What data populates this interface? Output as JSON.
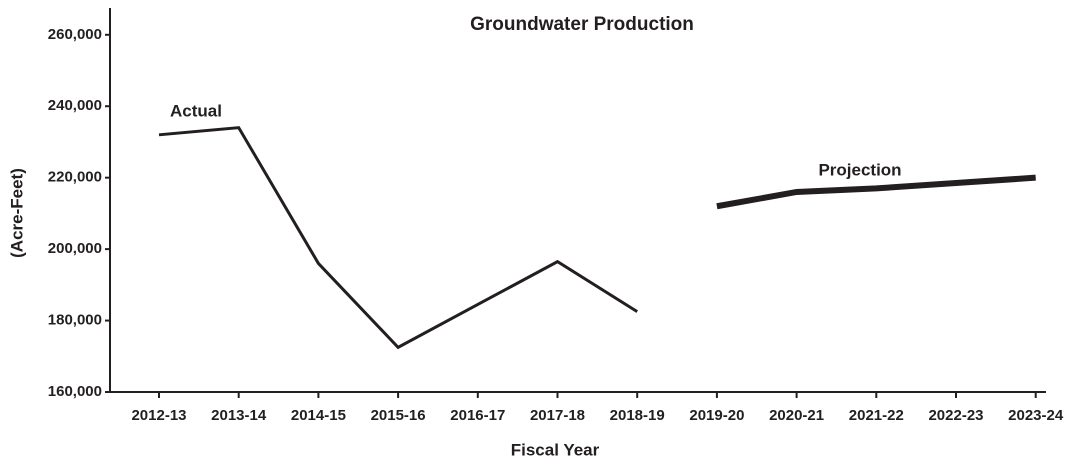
{
  "chart_data": {
    "type": "line",
    "title": "Groundwater Production",
    "x_label": "Fiscal Year",
    "y_label": "(Acre-Feet)",
    "categories": [
      "2012-13",
      "2013-14",
      "2014-15",
      "2015-16",
      "2016-17",
      "2017-18",
      "2018-19",
      "2019-20",
      "2020-21",
      "2021-22",
      "2022-23",
      "2023-24"
    ],
    "series": [
      {
        "name": "Actual",
        "color": "#231f20",
        "line_width": 3,
        "values": [
          232000,
          234000,
          196000,
          172500,
          184500,
          196500,
          182500,
          null,
          null,
          null,
          null,
          null
        ]
      },
      {
        "name": "Projection",
        "color": "#231f20",
        "line_width": 6,
        "values": [
          null,
          null,
          null,
          null,
          null,
          null,
          null,
          212000,
          216000,
          217000,
          218500,
          220000
        ]
      }
    ],
    "ylim": [
      160000,
      267500
    ],
    "yticks": [
      {
        "value": 160000,
        "label": "160,000"
      },
      {
        "value": 180000,
        "label": "180,000"
      },
      {
        "value": 200000,
        "label": "200,000"
      },
      {
        "value": 220000,
        "label": "220,000"
      },
      {
        "value": 240000,
        "label": "240,000"
      },
      {
        "value": 260000,
        "label": "260,000"
      }
    ],
    "grid": false
  }
}
